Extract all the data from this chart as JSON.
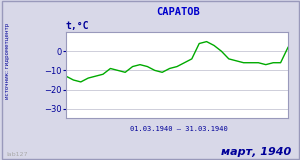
{
  "title": "САРАТОВ",
  "ylabel": "t,°C",
  "xlabel": "01.03.1940 – 31.03.1940",
  "footer": "март, 1940",
  "source_label": "источник: гидрометцентр",
  "watermark": "lab127",
  "ylim": [
    -35,
    10
  ],
  "yticks": [
    0,
    -10,
    -20,
    -30
  ],
  "line_color": "#00aa00",
  "bg_color": "#d8d8e8",
  "plot_bg_color": "#ffffff",
  "border_color": "#9999bb",
  "title_color": "#0000cc",
  "footer_color": "#000099",
  "axis_label_color": "#000099",
  "grid_color": "#bbbbcc",
  "days": [
    1,
    2,
    3,
    4,
    5,
    6,
    7,
    8,
    9,
    10,
    11,
    12,
    13,
    14,
    15,
    16,
    17,
    18,
    19,
    20,
    21,
    22,
    23,
    24,
    25,
    26,
    27,
    28,
    29,
    30,
    31
  ],
  "temps": [
    -13,
    -15,
    -16,
    -14,
    -13,
    -12,
    -9,
    -10,
    -11,
    -8,
    -7,
    -8,
    -10,
    -11,
    -9,
    -8,
    -6,
    -4,
    4,
    5,
    3,
    0,
    -4,
    -5,
    -6,
    -6,
    -6,
    -7,
    -6,
    -6,
    2
  ]
}
